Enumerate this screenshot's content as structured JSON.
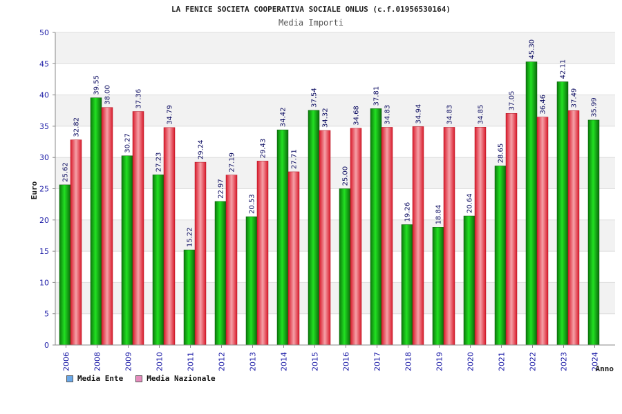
{
  "chart_data": {
    "type": "bar",
    "title": "LA FENICE SOCIETA COOPERATIVA SOCIALE ONLUS (c.f.01956530164)",
    "subtitle": "Media Importi",
    "ylabel": "Euro",
    "xlabel": "Anno",
    "ylim": [
      0,
      50
    ],
    "yticks": [
      "0",
      "5",
      "10",
      "15",
      "20",
      "25",
      "30",
      "35",
      "40",
      "45",
      "50"
    ],
    "grid": true,
    "legend_position": "bottom-left",
    "categories": [
      "2006",
      "2008",
      "2009",
      "2010",
      "2011",
      "2012",
      "2013",
      "2014",
      "2015",
      "2016",
      "2017",
      "2018",
      "2019",
      "2020",
      "2021",
      "2022",
      "2023",
      "2024"
    ],
    "series": [
      {
        "name": "Media Ente",
        "color": "#00b000",
        "legend_color": "#6aa8e8",
        "values": [
          25.62,
          39.55,
          30.27,
          27.23,
          15.22,
          22.97,
          20.53,
          34.42,
          37.54,
          25.0,
          37.81,
          19.26,
          18.84,
          20.64,
          28.65,
          45.3,
          42.11,
          35.99
        ],
        "labels": [
          "25.62",
          "39.55",
          "30.27",
          "27.23",
          "15.22",
          "22.97",
          "20.53",
          "34.42",
          "37.54",
          "25.00",
          "37.81",
          "19.26",
          "18.84",
          "20.64",
          "28.65",
          "45.30",
          "42.11",
          "35.99"
        ]
      },
      {
        "name": "Media Nazionale",
        "color": "#e83040",
        "legend_color": "#e58cbd",
        "values": [
          32.82,
          38.0,
          37.36,
          34.79,
          29.24,
          27.19,
          29.43,
          27.71,
          34.32,
          34.68,
          34.83,
          34.94,
          34.83,
          34.85,
          37.05,
          36.46,
          37.49,
          null
        ],
        "labels": [
          "32.82",
          "38.00",
          "37.36",
          "34.79",
          "29.24",
          "27.19",
          "29.43",
          "27.71",
          "34.32",
          "34.68",
          "34.83",
          "34.94",
          "34.83",
          "34.85",
          "37.05",
          "36.46",
          "37.49",
          null
        ]
      }
    ]
  }
}
